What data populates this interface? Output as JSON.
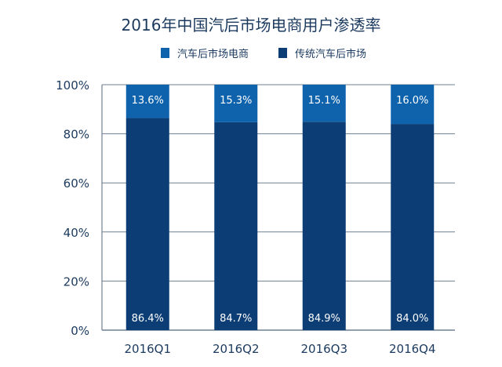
{
  "chart_data": {
    "type": "bar",
    "stacked": true,
    "title": "2016年中国汽后市场电商用户渗透率",
    "categories": [
      "2016Q1",
      "2016Q2",
      "2016Q3",
      "2016Q4"
    ],
    "series": [
      {
        "name": "汽车后市场电商",
        "values": [
          13.6,
          15.3,
          15.1,
          16.0
        ],
        "labels": [
          "13.6%",
          "15.3%",
          "15.1%",
          "16.0%"
        ],
        "color": "#0f63ad"
      },
      {
        "name": "传统汽车后市场",
        "values": [
          86.4,
          84.7,
          84.9,
          84.0
        ],
        "labels": [
          "86.4%",
          "84.7%",
          "84.9%",
          "84.0%"
        ],
        "color": "#0c3d75"
      }
    ],
    "yticks": [
      "0%",
      "20%",
      "40%",
      "60%",
      "80%",
      "100%"
    ],
    "ylim": [
      0,
      100
    ],
    "grid": true,
    "legend_position": "top-center",
    "xlabel": "",
    "ylabel": ""
  }
}
